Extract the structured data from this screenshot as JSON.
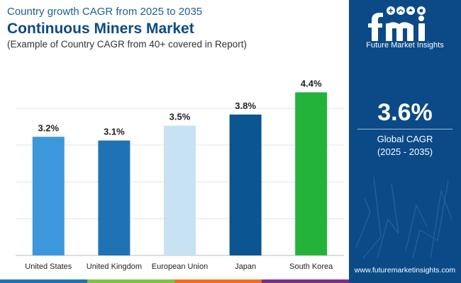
{
  "header": {
    "kicker": "Country growth CAGR from 2025 to 2035",
    "title": "Continuous Miners Market",
    "subtitle": "(Example of Country CAGR from 40+ covered in Report)"
  },
  "chart_data": {
    "type": "bar",
    "categories": [
      "United States",
      "United Kingdom",
      "European Union",
      "Japan",
      "South Korea"
    ],
    "values": [
      3.2,
      3.1,
      3.5,
      3.8,
      4.4
    ],
    "labels": [
      "3.2%",
      "3.1%",
      "3.5%",
      "3.8%",
      "4.4%"
    ],
    "colors": [
      "#3d97db",
      "#1f73b5",
      "#c7e2f2",
      "#0b5590",
      "#23b33a"
    ],
    "title": "",
    "xlabel": "",
    "ylabel": "",
    "ylim": [
      0,
      4.6
    ],
    "grid": true,
    "legend": "none"
  },
  "side_panel": {
    "brand": "Future Market Insights",
    "big_value": "3.6%",
    "metric_label": "Global CAGR",
    "period": "(2025 - 2035)",
    "website": "www.futuremarketinsights.com",
    "background_color": "#0b4a87"
  },
  "bottom_strip_colors": [
    "#1f73b5",
    "#7dc242",
    "#f26d21",
    "#7b2f8a"
  ]
}
